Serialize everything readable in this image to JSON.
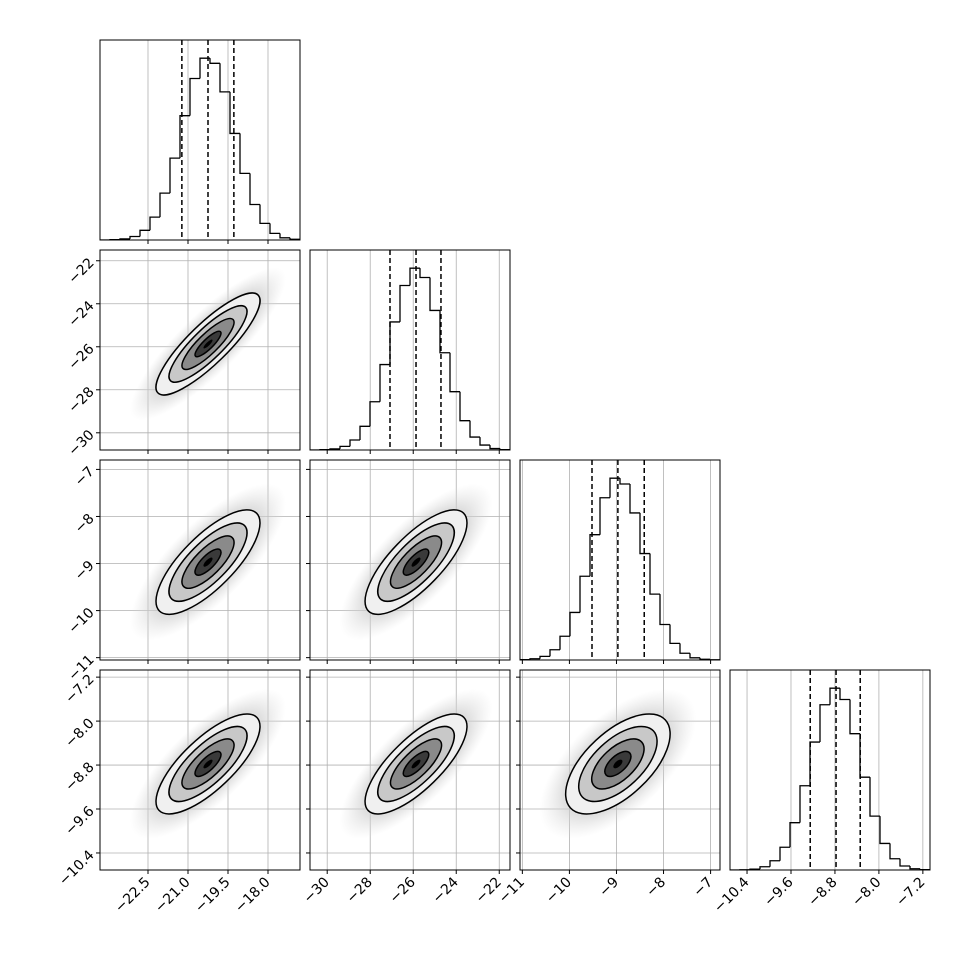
{
  "chart_data": {
    "type": "corner",
    "levels": [
      0.5,
      1,
      1.5,
      2
    ],
    "variables": [
      {
        "lim": [
          -24.3,
          -16.8
        ],
        "ticks": [
          {
            "value": -22.5,
            "label": "−22.5"
          },
          {
            "value": -21.0,
            "label": "−21.0"
          },
          {
            "value": -19.5,
            "label": "−19.5"
          },
          {
            "value": -18.0,
            "label": "−18.0"
          }
        ],
        "quantiles": [
          -21.23,
          -20.25,
          -19.28
        ],
        "bins": [
          -24.3,
          -23.925,
          -23.55,
          -23.175,
          -22.8,
          -22.425,
          -22.05,
          -21.675,
          -21.3,
          -20.925,
          -20.55,
          -20.175,
          -19.8,
          -19.425,
          -19.05,
          -18.675,
          -18.3,
          -17.925,
          -17.55,
          -17.175,
          -16.8
        ],
        "counts": [
          0,
          2,
          6,
          19,
          53,
          125,
          256,
          447,
          679,
          882,
          993,
          965,
          809,
          582,
          364,
          194,
          91,
          36,
          12,
          4
        ]
      },
      {
        "lim": [
          -30.8,
          -21.5
        ],
        "ticks": [
          {
            "value": -30,
            "label": "−30"
          },
          {
            "value": -28,
            "label": "−28"
          },
          {
            "value": -26,
            "label": "−26"
          },
          {
            "value": -24,
            "label": "−24"
          },
          {
            "value": -22,
            "label": "−22"
          }
        ],
        "quantiles": [
          -27.08,
          -25.87,
          -24.71
        ],
        "bins": [
          -30.8,
          -30.335,
          -29.87,
          -29.405,
          -28.94,
          -28.475,
          -28.01,
          -27.545,
          -27.08,
          -26.615,
          -26.15,
          -25.685,
          -25.22,
          -24.755,
          -24.29,
          -23.825,
          -23.36,
          -22.895,
          -22.43,
          -21.965,
          -21.5
        ],
        "counts": [
          0,
          2,
          6,
          20,
          55,
          130,
          265,
          469,
          703,
          903,
          998,
          947,
          766,
          534,
          320,
          161,
          71,
          27,
          8,
          2
        ]
      },
      {
        "lim": [
          -11.05,
          -6.8
        ],
        "ticks": [
          {
            "value": -11,
            "label": "−11"
          },
          {
            "value": -10,
            "label": "−10"
          },
          {
            "value": -9,
            "label": "−9"
          },
          {
            "value": -8,
            "label": "−8"
          },
          {
            "value": -7,
            "label": "−7"
          }
        ],
        "quantiles": [
          -9.52,
          -8.97,
          -8.41
        ],
        "bins": [
          -11.05,
          -10.8375,
          -10.625,
          -10.4125,
          -10.2,
          -9.9875,
          -9.775,
          -9.5625,
          -9.35,
          -9.1375,
          -8.925,
          -8.7125,
          -8.5,
          -8.2875,
          -8.075,
          -7.8625,
          -7.65,
          -7.4375,
          -7.225,
          -7.0125,
          -6.8
        ],
        "counts": [
          2,
          7,
          20,
          56,
          130,
          260,
          458,
          685,
          887,
          994,
          962,
          804,
          582,
          360,
          194,
          91,
          37,
          12,
          4,
          1
        ]
      },
      {
        "lim": [
          -10.71,
          -7.07
        ],
        "ticks": [
          {
            "value": -10.4,
            "label": "−10.4"
          },
          {
            "value": -9.6,
            "label": "−9.6"
          },
          {
            "value": -8.8,
            "label": "−8.8"
          },
          {
            "value": -8.0,
            "label": "−8.0"
          },
          {
            "value": -7.2,
            "label": "−7.2"
          }
        ],
        "quantiles": [
          -9.25,
          -8.78,
          -8.34
        ],
        "bins": [
          -10.71,
          -10.528,
          -10.346,
          -10.164,
          -9.982,
          -9.8,
          -9.618,
          -9.436,
          -9.254,
          -9.072,
          -8.89,
          -8.708,
          -8.526,
          -8.344,
          -8.162,
          -7.98,
          -7.798,
          -7.616,
          -7.434,
          -7.252,
          -7.07
        ],
        "counts": [
          0,
          1,
          5,
          18,
          51,
          125,
          260,
          463,
          703,
          908,
          999,
          937,
          749,
          510,
          296,
          146,
          62,
          22,
          7,
          2
        ]
      }
    ],
    "pairs": [
      {
        "x": 0,
        "y": 1,
        "correlation": 0.85
      },
      {
        "x": 0,
        "y": 2,
        "correlation": 0.75
      },
      {
        "x": 1,
        "y": 2,
        "correlation": 0.75
      },
      {
        "x": 0,
        "y": 3,
        "correlation": 0.75
      },
      {
        "x": 1,
        "y": 3,
        "correlation": 0.75
      },
      {
        "x": 2,
        "y": 3,
        "correlation": 0.6
      }
    ]
  }
}
